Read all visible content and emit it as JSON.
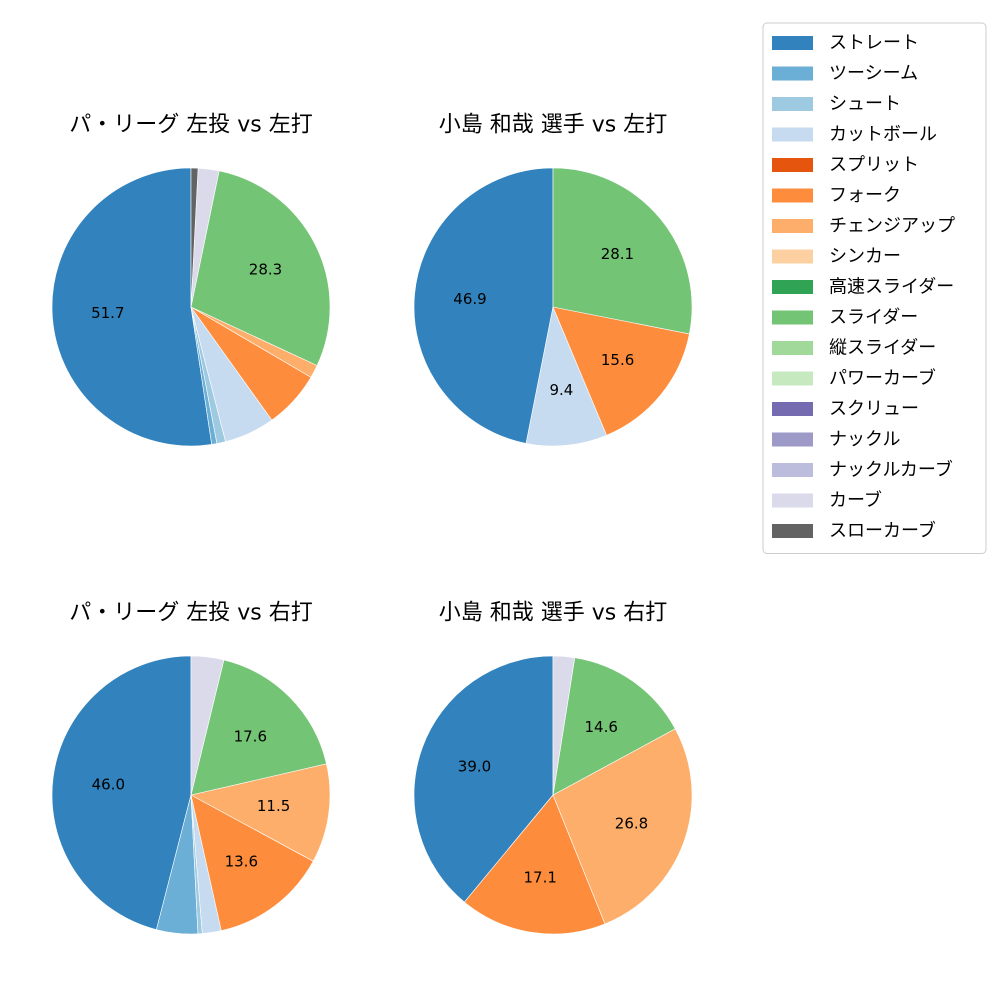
{
  "legend": {
    "placement": "top-right",
    "items": [
      {
        "label": "ストレート",
        "color": "#3182bd"
      },
      {
        "label": "ツーシーム",
        "color": "#6baed6"
      },
      {
        "label": "シュート",
        "color": "#9ecae1"
      },
      {
        "label": "カットボール",
        "color": "#c6dbef"
      },
      {
        "label": "スプリット",
        "color": "#e6550d"
      },
      {
        "label": "フォーク",
        "color": "#fd8d3c"
      },
      {
        "label": "チェンジアップ",
        "color": "#fdae6b"
      },
      {
        "label": "シンカー",
        "color": "#fdd0a2"
      },
      {
        "label": "高速スライダー",
        "color": "#31a354"
      },
      {
        "label": "スライダー",
        "color": "#74c476"
      },
      {
        "label": "縦スライダー",
        "color": "#a1d99b"
      },
      {
        "label": "パワーカーブ",
        "color": "#c7e9c0"
      },
      {
        "label": "スクリュー",
        "color": "#756bb1"
      },
      {
        "label": "ナックル",
        "color": "#9e9ac8"
      },
      {
        "label": "ナックルカーブ",
        "color": "#bcbddc"
      },
      {
        "label": "カーブ",
        "color": "#dadaeb"
      },
      {
        "label": "スローカーブ",
        "color": "#636363"
      }
    ]
  },
  "chart_data": [
    {
      "type": "pie",
      "title": "パ・リーグ 左投 vs 左打",
      "slices": [
        {
          "label": "ストレート",
          "value": 51.7,
          "shown": "51.7"
        },
        {
          "label": "ツーシーム",
          "value": 0.6,
          "shown": ""
        },
        {
          "label": "シュート",
          "value": 1.0,
          "shown": ""
        },
        {
          "label": "カットボール",
          "value": 5.8,
          "shown": ""
        },
        {
          "label": "フォーク",
          "value": 6.6,
          "shown": ""
        },
        {
          "label": "チェンジアップ",
          "value": 1.5,
          "shown": ""
        },
        {
          "label": "スライダー",
          "value": 28.3,
          "shown": "28.3"
        },
        {
          "label": "カーブ",
          "value": 2.4,
          "shown": ""
        },
        {
          "label": "スローカーブ",
          "value": 0.8,
          "shown": ""
        }
      ]
    },
    {
      "type": "pie",
      "title": "小島 和哉 選手 vs 左打",
      "slices": [
        {
          "label": "ストレート",
          "value": 46.9,
          "shown": "46.9"
        },
        {
          "label": "カットボール",
          "value": 9.4,
          "shown": "9.4"
        },
        {
          "label": "フォーク",
          "value": 15.6,
          "shown": "15.6"
        },
        {
          "label": "スライダー",
          "value": 28.1,
          "shown": "28.1"
        }
      ]
    },
    {
      "type": "pie",
      "title": "パ・リーグ 左投 vs 右打",
      "slices": [
        {
          "label": "ストレート",
          "value": 46.0,
          "shown": "46.0"
        },
        {
          "label": "ツーシーム",
          "value": 4.8,
          "shown": ""
        },
        {
          "label": "シュート",
          "value": 0.5,
          "shown": ""
        },
        {
          "label": "カットボール",
          "value": 2.2,
          "shown": ""
        },
        {
          "label": "フォーク",
          "value": 13.6,
          "shown": "13.6"
        },
        {
          "label": "チェンジアップ",
          "value": 11.5,
          "shown": "11.5"
        },
        {
          "label": "スライダー",
          "value": 17.6,
          "shown": "17.6"
        },
        {
          "label": "カーブ",
          "value": 3.8,
          "shown": ""
        }
      ]
    },
    {
      "type": "pie",
      "title": "小島 和哉 選手 vs 右打",
      "slices": [
        {
          "label": "ストレート",
          "value": 39.0,
          "shown": "39.0"
        },
        {
          "label": "フォーク",
          "value": 17.1,
          "shown": "17.1"
        },
        {
          "label": "チェンジアップ",
          "value": 26.8,
          "shown": "26.8"
        },
        {
          "label": "スライダー",
          "value": 14.6,
          "shown": "14.6"
        },
        {
          "label": "カーブ",
          "value": 2.5,
          "shown": ""
        }
      ]
    }
  ]
}
